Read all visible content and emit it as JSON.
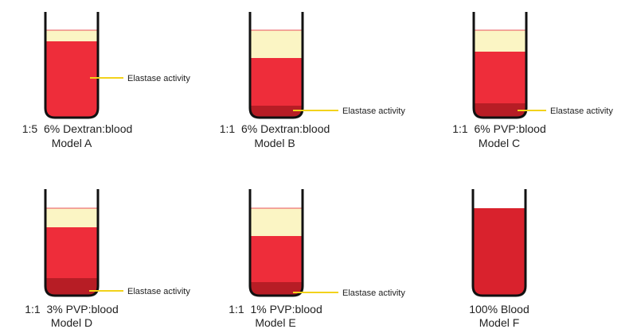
{
  "models": [
    {
      "ratio": "1:5  6% Dextran:blood",
      "name": "Model A",
      "annotation": "Elastase activity"
    },
    {
      "ratio": "1:1  6% Dextran:blood",
      "name": "Model B",
      "annotation": "Elastase activity"
    },
    {
      "ratio": "1:1  6% PVP:blood",
      "name": "Model C",
      "annotation": "Elastase activity"
    },
    {
      "ratio": "1:1  3% PVP:blood",
      "name": "Model D",
      "annotation": "Elastase activity"
    },
    {
      "ratio": "1:1  1% PVP:blood",
      "name": "Model E",
      "annotation": "Elastase activity"
    },
    {
      "ratio": "100% Blood",
      "name": "Model F"
    }
  ]
}
